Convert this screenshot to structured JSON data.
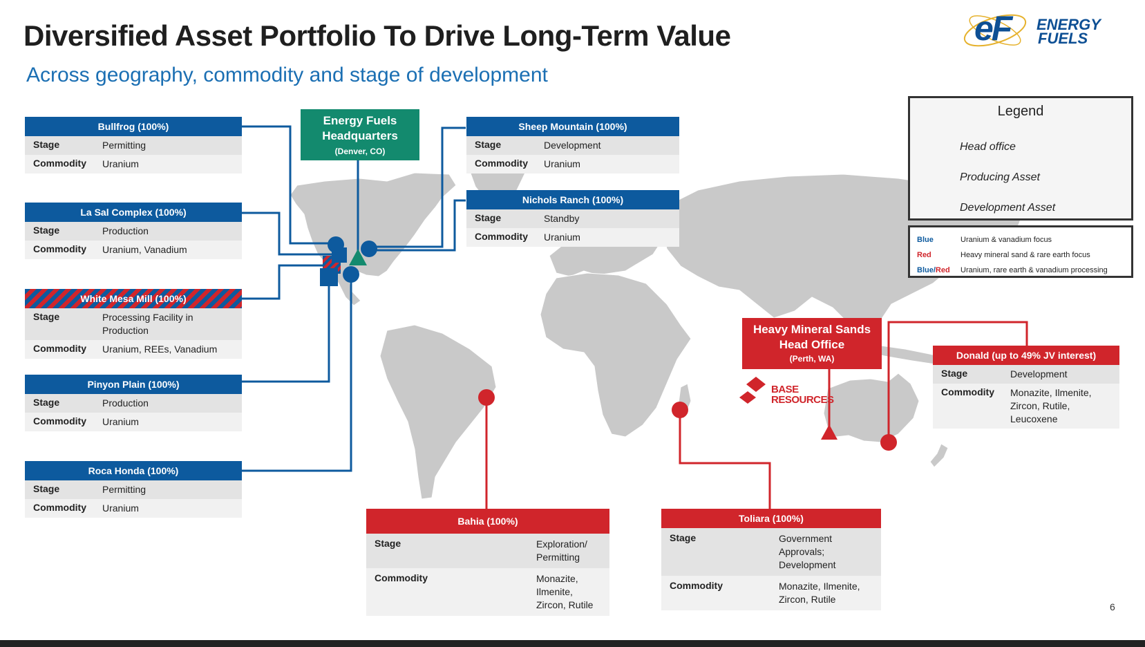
{
  "slide": {
    "title": "Diversified Asset Portfolio To Drive Long-Term Value",
    "subtitle": "Across geography, commodity and stage of development",
    "page_number": "6",
    "logo": {
      "mark": "eF",
      "line1": "ENERGY",
      "line2": "FUELS",
      "color": "#0d4f94",
      "orbit_color": "#e6b22e"
    }
  },
  "colors": {
    "blue": "#0d5a9e",
    "red": "#d0252b",
    "green": "#138a6e",
    "land": "#c9c9c9"
  },
  "assets_left": [
    {
      "name": "Bullfrog (100%)",
      "stage": "Permitting",
      "commodity": "Uranium",
      "style": "blue"
    },
    {
      "name": "La Sal Complex (100%)",
      "stage": "Production",
      "commodity": "Uranium, Vanadium",
      "style": "blue"
    },
    {
      "name": "White Mesa Mill (100%)",
      "stage": "Processing Facility in Production",
      "commodity": "Uranium, REEs, Vanadium",
      "style": "striped"
    },
    {
      "name": "Pinyon Plain (100%)",
      "stage": "Production",
      "commodity": "Uranium",
      "style": "blue"
    },
    {
      "name": "Roca Honda (100%)",
      "stage": "Permitting",
      "commodity": "Uranium",
      "style": "blue"
    }
  ],
  "assets_top": [
    {
      "name": "Sheep Mountain (100%)",
      "stage": "Development",
      "commodity": "Uranium"
    },
    {
      "name": "Nichols Ranch (100%)",
      "stage": "Standby",
      "commodity": "Uranium"
    }
  ],
  "hq_us": {
    "line1": "Energy Fuels",
    "line2": "Headquarters",
    "loc": "(Denver, CO)"
  },
  "hq_hms": {
    "line1": "Heavy Mineral Sands",
    "line2": "Head Office",
    "loc": "(Perth, WA)"
  },
  "base_resources": {
    "line1": "BASE",
    "line2": "RESOURCES"
  },
  "assets_red": {
    "donald": {
      "name": "Donald (up to 49% JV interest)",
      "stage": "Development",
      "commodity": "Monazite, Ilmenite, Zircon, Rutile, Leucoxene"
    },
    "bahia": {
      "name": "Bahia (100%)",
      "stage": "Exploration/ Permitting",
      "commodity": "Monazite, Ilmenite, Zircon, Rutile"
    },
    "toliara": {
      "name": "Toliara (100%)",
      "stage": "Government Approvals; Development",
      "commodity": "Monazite, Ilmenite, Zircon, Rutile"
    }
  },
  "labels": {
    "stage": "Stage",
    "commodity": "Commodity"
  },
  "legend": {
    "title": "Legend",
    "items": [
      {
        "icon": "triangle-icon",
        "label": "Head office"
      },
      {
        "icon": "square-icon",
        "label": "Producing Asset"
      },
      {
        "icon": "circle-icon",
        "label": "Development Asset"
      }
    ]
  },
  "color_key": [
    {
      "key": "Blue",
      "desc": "Uranium & vanadium focus"
    },
    {
      "key": "Red",
      "desc": "Heavy mineral sand & rare earth focus"
    },
    {
      "key_blue": "Blue",
      "key_sep": "/",
      "key_red": "Red",
      "desc": "Uranium, rare earth & vanadium processing"
    }
  ]
}
